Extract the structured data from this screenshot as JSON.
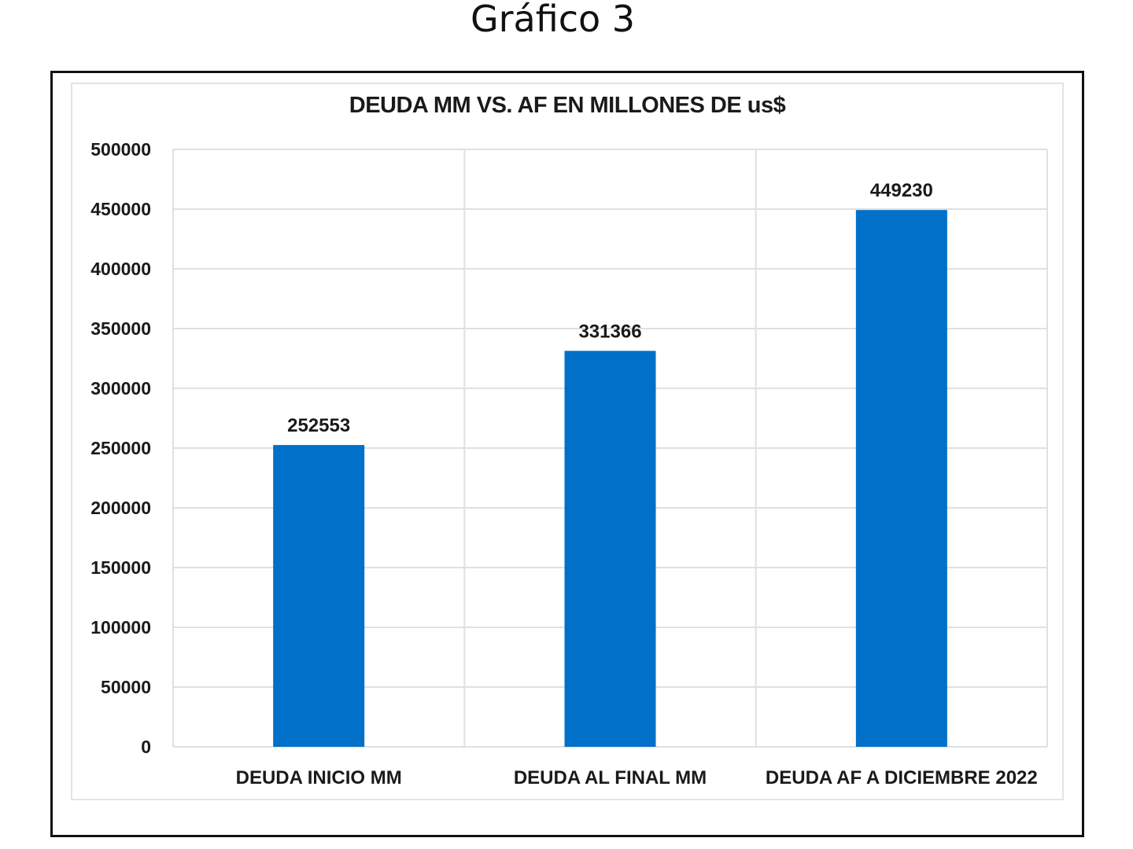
{
  "heading": "Gráfico 3",
  "chart_data": {
    "type": "bar",
    "title": "DEUDA MM VS. AF EN MILLONES DE us$",
    "categories": [
      "DEUDA INICIO MM",
      "DEUDA AL FINAL MM",
      "DEUDA AF A DICIEMBRE 2022"
    ],
    "values": [
      252553,
      331366,
      449230
    ],
    "data_labels": [
      "252553",
      "331366",
      "449230"
    ],
    "ylim": [
      0,
      500000
    ],
    "yticks": [
      0,
      50000,
      100000,
      150000,
      200000,
      250000,
      300000,
      350000,
      400000,
      450000,
      500000
    ],
    "ytick_labels": [
      "0",
      "50000",
      "100000",
      "150000",
      "200000",
      "250000",
      "300000",
      "350000",
      "400000",
      "450000",
      "500000"
    ],
    "grid": true,
    "legend": "none",
    "bar_color": "#0070c8",
    "grid_color": "#e0e0e0"
  }
}
